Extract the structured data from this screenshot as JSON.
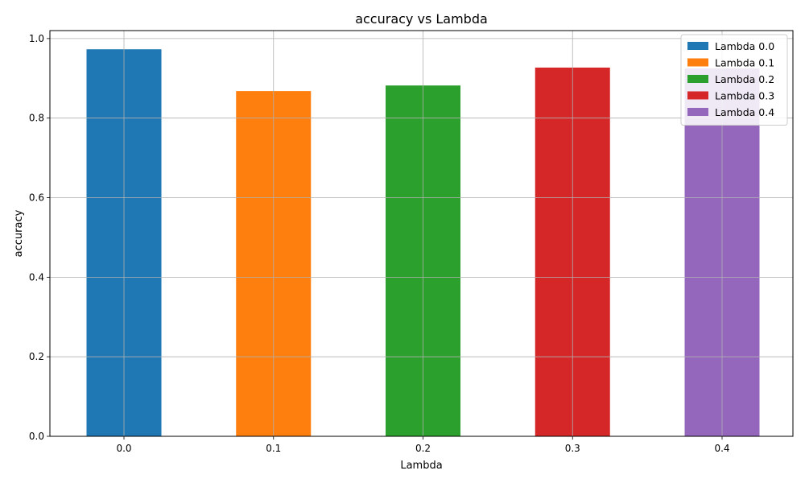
{
  "chart_data": {
    "type": "bar",
    "title": "accuracy vs Lambda",
    "xlabel": "Lambda",
    "ylabel": "accuracy",
    "categories": [
      "0.0",
      "0.1",
      "0.2",
      "0.3",
      "0.4"
    ],
    "series": [
      {
        "name": "Lambda 0.0",
        "category": "0.0",
        "value": 0.973,
        "color": "#1f77b4"
      },
      {
        "name": "Lambda 0.1",
        "category": "0.1",
        "value": 0.868,
        "color": "#ff7f0e"
      },
      {
        "name": "Lambda 0.2",
        "category": "0.2",
        "value": 0.882,
        "color": "#2ca02c"
      },
      {
        "name": "Lambda 0.3",
        "category": "0.3",
        "value": 0.927,
        "color": "#d62728"
      },
      {
        "name": "Lambda 0.4",
        "category": "0.4",
        "value": 0.925,
        "color": "#9467bd"
      }
    ],
    "ylim": [
      0,
      1.02
    ],
    "yticks": [
      "0.0",
      "0.2",
      "0.4",
      "0.6",
      "0.8",
      "1.0"
    ],
    "grid": true,
    "legend_position": "top-right"
  }
}
